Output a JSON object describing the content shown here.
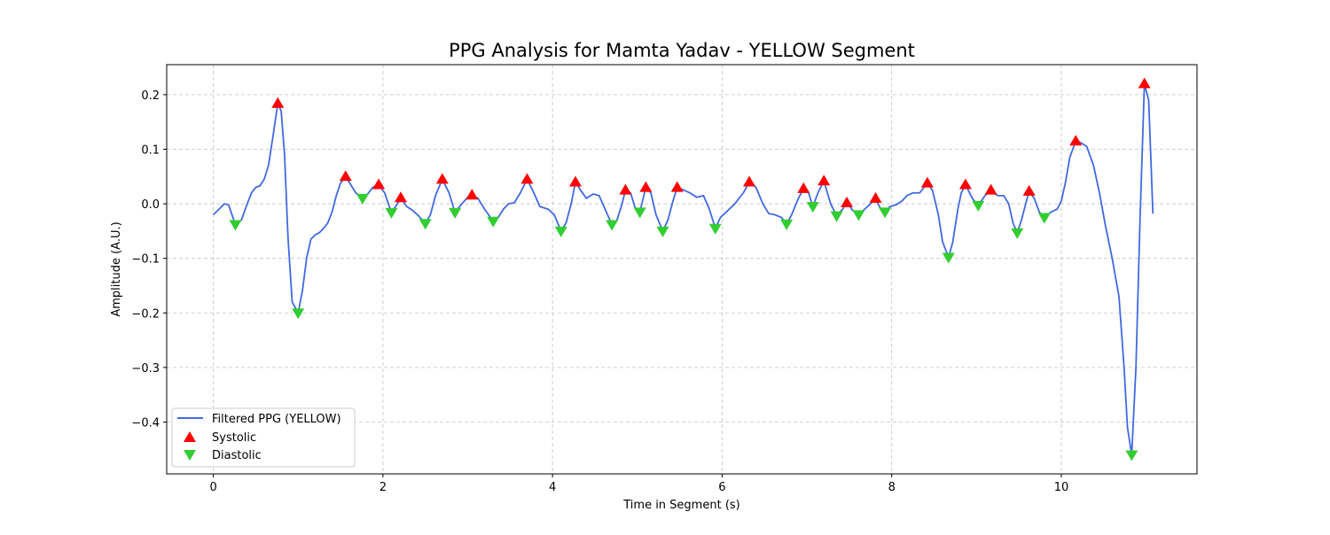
{
  "chart_data": {
    "type": "line",
    "title": "PPG Analysis for Mamta Yadav - YELLOW Segment",
    "xlabel": "Time in Segment (s)",
    "ylabel": "Amplitude (A.U.)",
    "xlim": [
      -0.55,
      11.6
    ],
    "ylim": [
      -0.495,
      0.255
    ],
    "xticks": [
      0,
      2,
      4,
      6,
      8,
      10
    ],
    "yticks": [
      0.2,
      0.1,
      0.0,
      -0.1,
      -0.2,
      -0.3,
      -0.4
    ],
    "xtick_labels": [
      "0",
      "2",
      "4",
      "6",
      "8",
      "10"
    ],
    "ytick_labels": [
      "0.2",
      "0.1",
      "0.0",
      "−0.1",
      "−0.2",
      "−0.3",
      "−0.4"
    ],
    "grid": true,
    "legend_position": "lower-left",
    "colors": {
      "line": "#4169e1",
      "systolic": "#ff0000",
      "diastolic": "#32cd32"
    },
    "series": [
      {
        "name": "Filtered PPG (YELLOW)",
        "style": "line",
        "points": [
          [
            0,
            -0.02
          ],
          [
            0.08,
            -0.008
          ],
          [
            0.13,
            0.0
          ],
          [
            0.18,
            -0.002
          ],
          [
            0.26,
            -0.038
          ],
          [
            0.33,
            -0.03
          ],
          [
            0.4,
            0.0
          ],
          [
            0.45,
            0.02
          ],
          [
            0.5,
            0.03
          ],
          [
            0.55,
            0.033
          ],
          [
            0.6,
            0.045
          ],
          [
            0.65,
            0.07
          ],
          [
            0.7,
            0.12
          ],
          [
            0.76,
            0.184
          ],
          [
            0.8,
            0.17
          ],
          [
            0.84,
            0.09
          ],
          [
            0.88,
            -0.06
          ],
          [
            0.93,
            -0.18
          ],
          [
            1.0,
            -0.2
          ],
          [
            1.05,
            -0.16
          ],
          [
            1.1,
            -0.1
          ],
          [
            1.15,
            -0.065
          ],
          [
            1.2,
            -0.057
          ],
          [
            1.25,
            -0.053
          ],
          [
            1.3,
            -0.045
          ],
          [
            1.35,
            -0.035
          ],
          [
            1.4,
            -0.015
          ],
          [
            1.45,
            0.015
          ],
          [
            1.5,
            0.038
          ],
          [
            1.56,
            0.05
          ],
          [
            1.62,
            0.035
          ],
          [
            1.68,
            0.02
          ],
          [
            1.76,
            0.01
          ],
          [
            1.82,
            0.018
          ],
          [
            1.88,
            0.03
          ],
          [
            1.95,
            0.035
          ],
          [
            2.02,
            0.02
          ],
          [
            2.1,
            -0.016
          ],
          [
            2.15,
            -0.005
          ],
          [
            2.21,
            0.011
          ],
          [
            2.28,
            -0.005
          ],
          [
            2.35,
            -0.012
          ],
          [
            2.42,
            -0.022
          ],
          [
            2.5,
            -0.036
          ],
          [
            2.56,
            -0.02
          ],
          [
            2.62,
            0.015
          ],
          [
            2.7,
            0.045
          ],
          [
            2.78,
            0.02
          ],
          [
            2.85,
            -0.016
          ],
          [
            2.92,
            -0.002
          ],
          [
            3.0,
            0.012
          ],
          [
            3.05,
            0.016
          ],
          [
            3.12,
            0.01
          ],
          [
            3.2,
            -0.01
          ],
          [
            3.3,
            -0.032
          ],
          [
            3.36,
            -0.025
          ],
          [
            3.42,
            -0.01
          ],
          [
            3.48,
            0.0
          ],
          [
            3.55,
            0.002
          ],
          [
            3.62,
            0.02
          ],
          [
            3.7,
            0.045
          ],
          [
            3.78,
            0.02
          ],
          [
            3.85,
            -0.005
          ],
          [
            3.95,
            -0.01
          ],
          [
            4.02,
            -0.02
          ],
          [
            4.1,
            -0.05
          ],
          [
            4.16,
            -0.035
          ],
          [
            4.22,
            0.0
          ],
          [
            4.27,
            0.04
          ],
          [
            4.33,
            0.025
          ],
          [
            4.4,
            0.01
          ],
          [
            4.48,
            0.018
          ],
          [
            4.55,
            0.015
          ],
          [
            4.62,
            -0.01
          ],
          [
            4.7,
            -0.038
          ],
          [
            4.76,
            -0.03
          ],
          [
            4.82,
            0.0
          ],
          [
            4.86,
            0.025
          ],
          [
            4.92,
            0.02
          ],
          [
            4.98,
            -0.01
          ],
          [
            5.03,
            -0.015
          ],
          [
            5.1,
            0.03
          ],
          [
            5.16,
            0.02
          ],
          [
            5.22,
            -0.02
          ],
          [
            5.3,
            -0.05
          ],
          [
            5.36,
            -0.03
          ],
          [
            5.42,
            0.005
          ],
          [
            5.47,
            0.03
          ],
          [
            5.55,
            0.025
          ],
          [
            5.62,
            0.02
          ],
          [
            5.7,
            0.012
          ],
          [
            5.78,
            0.015
          ],
          [
            5.85,
            -0.01
          ],
          [
            5.92,
            -0.045
          ],
          [
            5.98,
            -0.025
          ],
          [
            6.05,
            -0.015
          ],
          [
            6.15,
            0.0
          ],
          [
            6.25,
            0.02
          ],
          [
            6.32,
            0.04
          ],
          [
            6.4,
            0.03
          ],
          [
            6.48,
            0.0
          ],
          [
            6.55,
            -0.018
          ],
          [
            6.62,
            -0.02
          ],
          [
            6.7,
            -0.025
          ],
          [
            6.76,
            -0.037
          ],
          [
            6.82,
            -0.02
          ],
          [
            6.9,
            0.01
          ],
          [
            6.96,
            0.028
          ],
          [
            7.02,
            0.02
          ],
          [
            7.07,
            -0.005
          ],
          [
            7.13,
            0.02
          ],
          [
            7.2,
            0.042
          ],
          [
            7.28,
            0.0
          ],
          [
            7.35,
            -0.022
          ],
          [
            7.42,
            -0.01
          ],
          [
            7.47,
            0.002
          ],
          [
            7.54,
            -0.012
          ],
          [
            7.61,
            -0.02
          ],
          [
            7.68,
            -0.01
          ],
          [
            7.75,
            0.0
          ],
          [
            7.81,
            0.01
          ],
          [
            7.87,
            -0.01
          ],
          [
            7.92,
            -0.015
          ],
          [
            7.98,
            -0.005
          ],
          [
            8.05,
            -0.002
          ],
          [
            8.12,
            0.005
          ],
          [
            8.18,
            0.015
          ],
          [
            8.25,
            0.02
          ],
          [
            8.33,
            0.02
          ],
          [
            8.42,
            0.038
          ],
          [
            8.48,
            0.025
          ],
          [
            8.55,
            -0.02
          ],
          [
            8.6,
            -0.07
          ],
          [
            8.67,
            -0.098
          ],
          [
            8.72,
            -0.07
          ],
          [
            8.78,
            -0.01
          ],
          [
            8.82,
            0.02
          ],
          [
            8.87,
            0.035
          ],
          [
            8.95,
            0.01
          ],
          [
            9.02,
            -0.003
          ],
          [
            9.1,
            0.015
          ],
          [
            9.17,
            0.025
          ],
          [
            9.25,
            0.015
          ],
          [
            9.32,
            0.015
          ],
          [
            9.38,
            0.0
          ],
          [
            9.43,
            -0.035
          ],
          [
            9.48,
            -0.053
          ],
          [
            9.53,
            -0.03
          ],
          [
            9.58,
            0.0
          ],
          [
            9.62,
            0.023
          ],
          [
            9.68,
            0.01
          ],
          [
            9.74,
            -0.015
          ],
          [
            9.8,
            -0.025
          ],
          [
            9.88,
            -0.015
          ],
          [
            9.95,
            -0.01
          ],
          [
            10.0,
            0.005
          ],
          [
            10.05,
            0.04
          ],
          [
            10.1,
            0.085
          ],
          [
            10.17,
            0.115
          ],
          [
            10.23,
            0.112
          ],
          [
            10.3,
            0.105
          ],
          [
            10.38,
            0.07
          ],
          [
            10.45,
            0.02
          ],
          [
            10.52,
            -0.04
          ],
          [
            10.6,
            -0.1
          ],
          [
            10.68,
            -0.17
          ],
          [
            10.74,
            -0.3
          ],
          [
            10.78,
            -0.41
          ],
          [
            10.83,
            -0.46
          ],
          [
            10.88,
            -0.3
          ],
          [
            10.93,
            -0.02
          ],
          [
            10.98,
            0.22
          ],
          [
            11.03,
            0.19
          ],
          [
            11.08,
            -0.018
          ]
        ]
      },
      {
        "name": "Systolic",
        "style": "marker-up",
        "points": [
          [
            0.76,
            0.184
          ],
          [
            1.56,
            0.05
          ],
          [
            1.95,
            0.035
          ],
          [
            2.21,
            0.011
          ],
          [
            2.7,
            0.045
          ],
          [
            3.05,
            0.016
          ],
          [
            3.7,
            0.045
          ],
          [
            4.27,
            0.04
          ],
          [
            4.86,
            0.025
          ],
          [
            5.1,
            0.03
          ],
          [
            5.47,
            0.03
          ],
          [
            6.32,
            0.04
          ],
          [
            6.96,
            0.028
          ],
          [
            7.2,
            0.042
          ],
          [
            7.47,
            0.002
          ],
          [
            7.81,
            0.01
          ],
          [
            8.42,
            0.038
          ],
          [
            8.87,
            0.035
          ],
          [
            9.17,
            0.025
          ],
          [
            9.62,
            0.023
          ],
          [
            10.17,
            0.115
          ],
          [
            10.98,
            0.22
          ]
        ]
      },
      {
        "name": "Diastolic",
        "style": "marker-down",
        "points": [
          [
            0.26,
            -0.038
          ],
          [
            1.0,
            -0.2
          ],
          [
            1.76,
            0.01
          ],
          [
            2.1,
            -0.016
          ],
          [
            2.5,
            -0.036
          ],
          [
            2.85,
            -0.016
          ],
          [
            3.3,
            -0.032
          ],
          [
            4.1,
            -0.05
          ],
          [
            4.7,
            -0.038
          ],
          [
            5.03,
            -0.015
          ],
          [
            5.3,
            -0.05
          ],
          [
            5.92,
            -0.045
          ],
          [
            6.76,
            -0.037
          ],
          [
            7.07,
            -0.005
          ],
          [
            7.35,
            -0.022
          ],
          [
            7.61,
            -0.02
          ],
          [
            7.92,
            -0.015
          ],
          [
            8.67,
            -0.098
          ],
          [
            9.02,
            -0.003
          ],
          [
            9.48,
            -0.053
          ],
          [
            9.8,
            -0.025
          ],
          [
            10.83,
            -0.46
          ]
        ]
      }
    ]
  }
}
